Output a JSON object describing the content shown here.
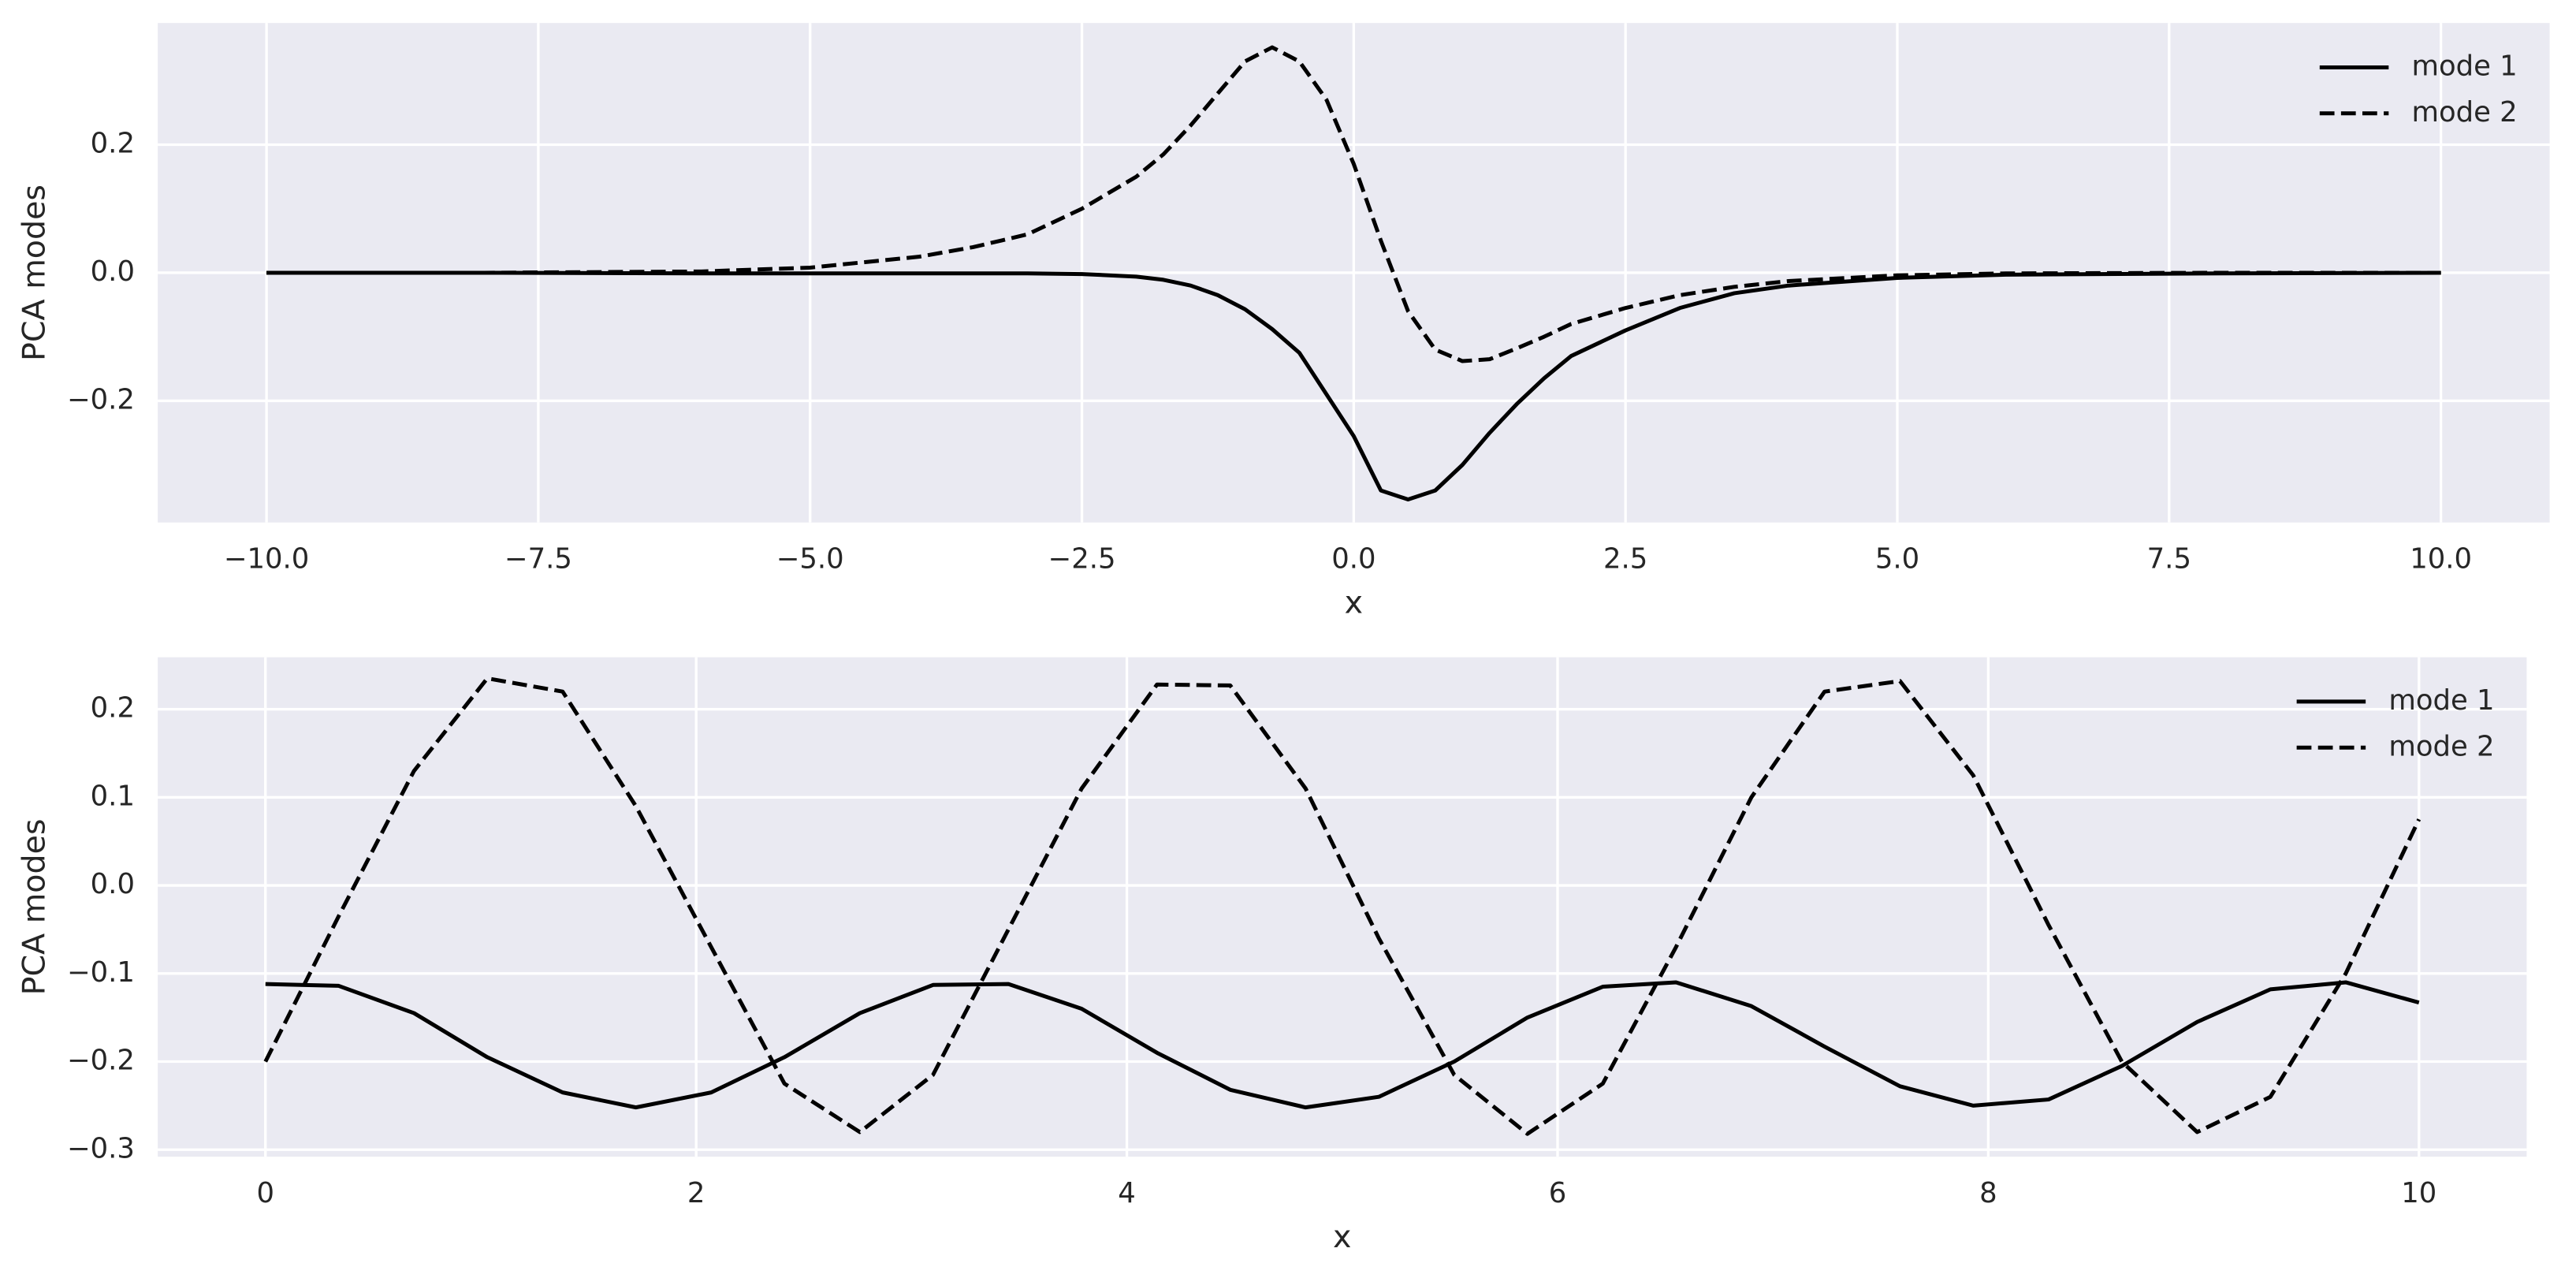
{
  "chart_data": [
    {
      "type": "line",
      "xlabel": "x",
      "ylabel": "PCA modes",
      "x": [
        -10,
        -8,
        -6,
        -5,
        -4,
        -3.5,
        -3,
        -2.5,
        -2,
        -1.75,
        -1.5,
        -1.25,
        -1,
        -0.75,
        -0.5,
        -0.25,
        0,
        0.25,
        0.5,
        0.75,
        1,
        1.25,
        1.5,
        1.75,
        2,
        2.5,
        3,
        3.5,
        4,
        5,
        6,
        8,
        10
      ],
      "series": [
        {
          "name": "mode 1",
          "color": "#000000",
          "linestyle": "solid",
          "values": [
            0,
            0,
            -0.001,
            -0.001,
            -0.001,
            -0.001,
            -0.001,
            -0.002,
            -0.006,
            -0.011,
            -0.02,
            -0.035,
            -0.057,
            -0.088,
            -0.125,
            -0.19,
            -0.255,
            -0.34,
            -0.354,
            -0.34,
            -0.3,
            -0.25,
            -0.205,
            -0.165,
            -0.13,
            -0.09,
            -0.055,
            -0.032,
            -0.02,
            -0.008,
            -0.003,
            -0.001,
            0
          ]
        },
        {
          "name": "mode 2",
          "color": "#000000",
          "linestyle": "dashed",
          "values": [
            0,
            0,
            0.002,
            0.008,
            0.025,
            0.04,
            0.06,
            0.1,
            0.15,
            0.185,
            0.23,
            0.28,
            0.33,
            0.352,
            0.33,
            0.27,
            0.17,
            0.05,
            -0.06,
            -0.12,
            -0.138,
            -0.135,
            -0.118,
            -0.1,
            -0.08,
            -0.055,
            -0.035,
            -0.022,
            -0.013,
            -0.004,
            -0.001,
            0,
            0
          ]
        }
      ],
      "xlim": [
        -11,
        11
      ],
      "xticks": [
        {
          "value": -10,
          "label": "−10.0"
        },
        {
          "value": -7.5,
          "label": "−7.5"
        },
        {
          "value": -5,
          "label": "−5.0"
        },
        {
          "value": -2.5,
          "label": "−2.5"
        },
        {
          "value": 0,
          "label": "0.0"
        },
        2.5,
        {
          "value": 5,
          "label": "5.0"
        },
        7.5,
        {
          "value": 10,
          "label": "10.0"
        }
      ],
      "ylim": [
        -0.39,
        0.39
      ],
      "yticks": [
        {
          "value": -0.2,
          "label": "−0.2"
        },
        {
          "value": 0,
          "label": "0.0"
        },
        0.2
      ],
      "grid": true,
      "legend": "upper right",
      "background": "#eaeaf2"
    },
    {
      "type": "line",
      "xlabel": "x",
      "ylabel": "PCA modes",
      "x": [
        0,
        0.34,
        0.69,
        1.03,
        1.38,
        1.72,
        2.07,
        2.41,
        2.76,
        3.1,
        3.45,
        3.79,
        4.14,
        4.48,
        4.83,
        5.17,
        5.52,
        5.86,
        6.21,
        6.55,
        6.9,
        7.24,
        7.59,
        7.93,
        8.28,
        8.62,
        8.97,
        9.31,
        9.66,
        10
      ],
      "series": [
        {
          "name": "mode 1",
          "color": "#000000",
          "linestyle": "solid",
          "values": [
            -0.112,
            -0.114,
            -0.145,
            -0.195,
            -0.235,
            -0.252,
            -0.235,
            -0.195,
            -0.145,
            -0.113,
            -0.112,
            -0.14,
            -0.19,
            -0.232,
            -0.252,
            -0.24,
            -0.2,
            -0.15,
            -0.115,
            -0.11,
            -0.137,
            -0.183,
            -0.228,
            -0.25,
            -0.243,
            -0.205,
            -0.155,
            -0.118,
            -0.11,
            -0.133
          ]
        },
        {
          "name": "mode 2",
          "color": "#000000",
          "linestyle": "dashed",
          "values": [
            -0.2,
            -0.035,
            0.13,
            0.235,
            0.22,
            0.09,
            -0.07,
            -0.225,
            -0.28,
            -0.215,
            -0.05,
            0.11,
            0.228,
            0.227,
            0.11,
            -0.06,
            -0.215,
            -0.282,
            -0.225,
            -0.07,
            0.1,
            0.22,
            0.232,
            0.125,
            -0.045,
            -0.2,
            -0.28,
            -0.24,
            -0.1,
            0.075
          ]
        }
      ],
      "xlim": [
        -0.5,
        10.5
      ],
      "xticks": [
        0,
        2,
        4,
        6,
        8,
        10
      ],
      "ylim": [
        -0.308,
        0.259
      ],
      "yticks": [
        {
          "value": -0.3,
          "label": "−0.3"
        },
        {
          "value": -0.2,
          "label": "−0.2"
        },
        {
          "value": -0.1,
          "label": "−0.1"
        },
        {
          "value": 0,
          "label": "0.0"
        },
        0.1,
        0.2
      ],
      "grid": true,
      "legend": "upper right",
      "background": "#eaeaf2"
    }
  ]
}
